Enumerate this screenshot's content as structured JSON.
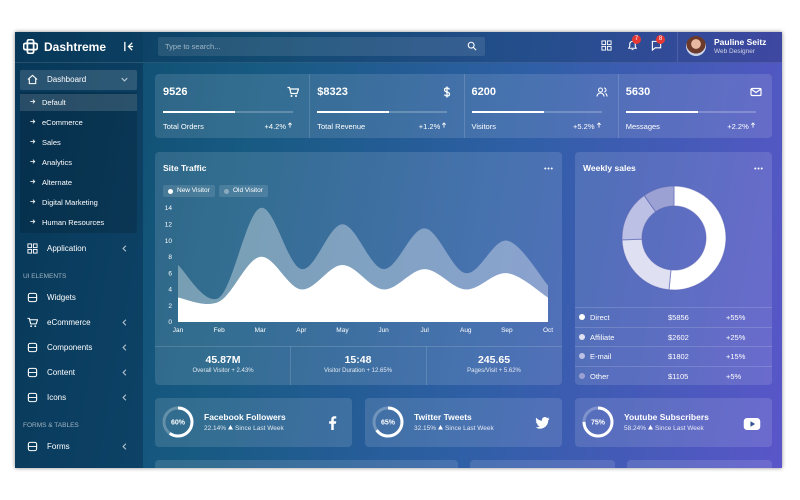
{
  "header": {
    "brand": "Dashtreme",
    "search_placeholder": "Type to search...",
    "notifications": [
      7,
      8
    ],
    "user": {
      "name": "Pauline Seitz",
      "role": "Web Designer"
    }
  },
  "sidebar": {
    "menu": [
      {
        "label": "Dashboard",
        "children": [
          "Default",
          "eCommerce",
          "Sales",
          "Analytics",
          "Alternate",
          "Digital Marketing",
          "Human Resources"
        ]
      },
      {
        "label": "Application"
      }
    ],
    "sections": [
      {
        "title": "UI ELEMENTS",
        "items": [
          "Widgets",
          "eCommerce",
          "Components",
          "Content",
          "Icons"
        ]
      },
      {
        "title": "FORMS & TABLES",
        "items": [
          "Forms"
        ]
      }
    ]
  },
  "stats": [
    {
      "value": 9526,
      "label": "Total Orders",
      "change": "+4.2%"
    },
    {
      "value": "$8323",
      "label": "Total Revenue",
      "change": "+1.2%"
    },
    {
      "value": 6200,
      "label": "Visitors",
      "change": "+5.2%"
    },
    {
      "value": 5630,
      "label": "Messages",
      "change": "+2.2%"
    }
  ],
  "chart_data": [
    {
      "type": "area",
      "title": "Site Traffic",
      "categories": [
        "Jan",
        "Feb",
        "Mar",
        "Apr",
        "May",
        "Jun",
        "Jul",
        "Aug",
        "Sep",
        "Oct"
      ],
      "series": [
        {
          "name": "New Visitor",
          "color": "#ffffff",
          "values": [
            3,
            2.5,
            8,
            4,
            7,
            4,
            6.5,
            4,
            6,
            3
          ]
        },
        {
          "name": "Old Visitor",
          "color": "rgba(255,255,255,0.35)",
          "values": [
            7,
            3,
            14,
            6.5,
            12,
            6.5,
            11.5,
            6,
            10,
            4.5
          ]
        }
      ],
      "ylim": [
        0,
        14
      ],
      "yticks": [
        0,
        2,
        4,
        6,
        8,
        10,
        12,
        14
      ]
    },
    {
      "type": "pie",
      "title": "Weekly sales",
      "categories": [
        "Direct",
        "Affiliate",
        "E-mail",
        "Other"
      ],
      "values": [
        5856,
        2602,
        1802,
        1105
      ],
      "value_labels": [
        "$5856",
        "$2602",
        "$1802",
        "$1105"
      ],
      "changes": [
        "+55%",
        "+25%",
        "+15%",
        "+5%"
      ],
      "colors": [
        "#ffffff",
        "#dfe1f3",
        "#bcc0e4",
        "#9ba1d2"
      ]
    }
  ],
  "traffic_summary": [
    {
      "value": "45.87M",
      "label": "Overall Visitor + 2.43%"
    },
    {
      "value": "15:48",
      "label": "Visitor Duration + 12.65%"
    },
    {
      "value": "245.65",
      "label": "Pages/Visit + 5.62%"
    }
  ],
  "social": [
    {
      "percent": {
        "value": 60,
        "label": "60%"
      },
      "title": "Facebook Followers",
      "change": "22.14%",
      "note": "Since Last Week"
    },
    {
      "percent": {
        "value": 65,
        "label": "65%"
      },
      "title": "Twitter Tweets",
      "change": "32.15%",
      "note": "Since Last Week"
    },
    {
      "percent": {
        "value": 75,
        "label": "75%"
      },
      "title": "Youtube Subscribers",
      "change": "58.24%",
      "note": "Since Last Week"
    }
  ]
}
